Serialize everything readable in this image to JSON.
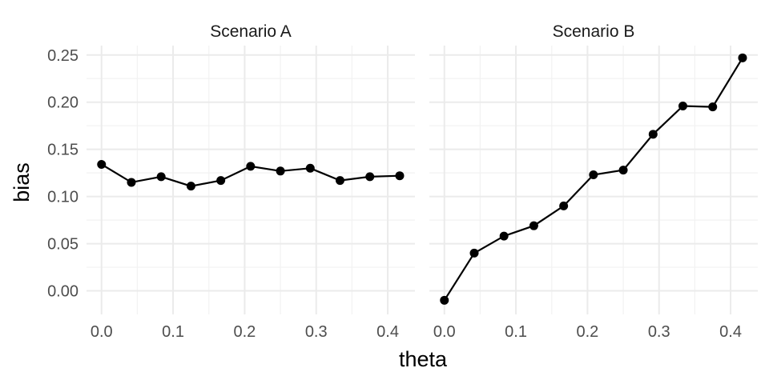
{
  "chart_data": {
    "type": "line",
    "xlabel": "theta",
    "ylabel": "bias",
    "x_ticks": [
      "0.0",
      "0.1",
      "0.2",
      "0.3",
      "0.4"
    ],
    "y_ticks": [
      "0.00",
      "0.05",
      "0.10",
      "0.15",
      "0.20",
      "0.25"
    ],
    "xlim": [
      -0.021,
      0.438
    ],
    "ylim": [
      -0.025,
      0.26
    ],
    "grid": true,
    "panels": [
      {
        "title": "Scenario A",
        "x": [
          0.0,
          0.0417,
          0.0833,
          0.125,
          0.1667,
          0.2083,
          0.25,
          0.2917,
          0.3333,
          0.375,
          0.4167
        ],
        "y": [
          0.134,
          0.115,
          0.121,
          0.111,
          0.117,
          0.132,
          0.127,
          0.13,
          0.117,
          0.121,
          0.122
        ]
      },
      {
        "title": "Scenario B",
        "x": [
          0.0,
          0.0417,
          0.0833,
          0.125,
          0.1667,
          0.2083,
          0.25,
          0.2917,
          0.3333,
          0.375,
          0.4167
        ],
        "y": [
          -0.01,
          0.04,
          0.058,
          0.069,
          0.09,
          0.123,
          0.128,
          0.166,
          0.196,
          0.195,
          0.247
        ]
      }
    ]
  }
}
